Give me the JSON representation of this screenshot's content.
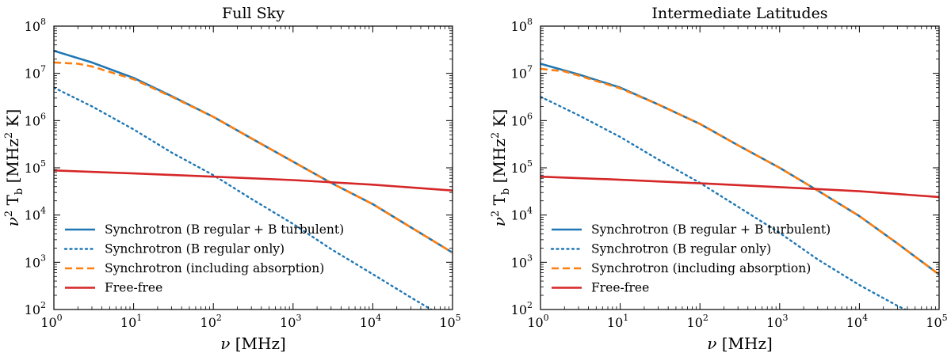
{
  "chart_data": [
    {
      "type": "line",
      "title": "Full Sky",
      "xlabel": "ν [MHz]",
      "ylabel": "ν2 Tb [MHz2 K]",
      "xscale": "log",
      "yscale": "log",
      "xlim": [
        1,
        100000
      ],
      "ylim": [
        100,
        100000000
      ],
      "xticks": [
        "10^0",
        "10^1",
        "10^2",
        "10^3",
        "10^4",
        "10^5"
      ],
      "yticks": [
        "10^2",
        "10^3",
        "10^4",
        "10^5",
        "10^6",
        "10^7",
        "10^8"
      ],
      "legend_position": "lower-left",
      "series": [
        {
          "name": "Synchrotron (B regular + B turbulent)",
          "style": "solid",
          "color": "#1f77b4",
          "x": [
            1,
            3,
            10,
            30,
            100,
            300,
            1000,
            3000,
            10000,
            30000,
            100000
          ],
          "y": [
            30000000,
            17000000,
            8000000,
            3300000,
            1200000,
            420000,
            135000,
            48000,
            17000,
            5500,
            1600
          ]
        },
        {
          "name": "Synchrotron (B regular only)",
          "style": "dotted",
          "color": "#1f77b4",
          "x": [
            1,
            3,
            10,
            30,
            100,
            300,
            1000,
            3000,
            10000,
            30000,
            60000
          ],
          "y": [
            5000000,
            2000000,
            650000,
            210000,
            70000,
            22000,
            6500,
            1900,
            560,
            180,
            90
          ]
        },
        {
          "name": "Synchrotron (including absorption)",
          "style": "dashed",
          "color": "#ff7f0e",
          "x": [
            1,
            2,
            3,
            10,
            30,
            100,
            300,
            1000,
            3000,
            10000,
            30000,
            100000
          ],
          "y": [
            17000000,
            16000000,
            14000000,
            7500000,
            3200000,
            1200000,
            420000,
            135000,
            48000,
            17000,
            5500,
            1600
          ]
        },
        {
          "name": "Free-free",
          "style": "solid",
          "color": "#d62728",
          "x": [
            1,
            10,
            100,
            1000,
            10000,
            100000
          ],
          "y": [
            88000,
            76000,
            65000,
            55000,
            44000,
            33000
          ]
        }
      ]
    },
    {
      "type": "line",
      "title": "Intermediate Latitudes",
      "xlabel": "ν [MHz]",
      "ylabel": "ν2 Tb [MHz2 K]",
      "xscale": "log",
      "yscale": "log",
      "xlim": [
        1,
        100000
      ],
      "ylim": [
        100,
        100000000
      ],
      "xticks": [
        "10^0",
        "10^1",
        "10^2",
        "10^3",
        "10^4",
        "10^5"
      ],
      "yticks": [
        "10^2",
        "10^3",
        "10^4",
        "10^5",
        "10^6",
        "10^7",
        "10^8"
      ],
      "legend_position": "lower-left",
      "series": [
        {
          "name": "Synchrotron (B regular + B turbulent)",
          "style": "solid",
          "color": "#1f77b4",
          "x": [
            1,
            3,
            10,
            30,
            100,
            300,
            1000,
            3000,
            10000,
            30000,
            100000
          ],
          "y": [
            16000000,
            9500000,
            5000000,
            2200000,
            850000,
            300000,
            100000,
            33000,
            9500,
            2500,
            550
          ]
        },
        {
          "name": "Synchrotron (B regular only)",
          "style": "dotted",
          "color": "#1f77b4",
          "x": [
            1,
            3,
            10,
            30,
            100,
            300,
            1000,
            3000,
            10000,
            30000,
            40000
          ],
          "y": [
            3200000,
            1300000,
            450000,
            150000,
            48000,
            15000,
            4200,
            1150,
            330,
            120,
            95
          ]
        },
        {
          "name": "Synchrotron (including absorption)",
          "style": "dashed",
          "color": "#ff7f0e",
          "x": [
            1,
            2,
            3,
            10,
            30,
            100,
            300,
            1000,
            3000,
            10000,
            30000,
            100000
          ],
          "y": [
            12500000,
            11000000,
            9000000,
            4800000,
            2200000,
            850000,
            300000,
            100000,
            33000,
            9500,
            2500,
            550
          ]
        },
        {
          "name": "Free-free",
          "style": "solid",
          "color": "#d62728",
          "x": [
            1,
            10,
            100,
            1000,
            10000,
            100000
          ],
          "y": [
            65000,
            56000,
            47000,
            39000,
            32000,
            24000
          ]
        }
      ]
    }
  ]
}
